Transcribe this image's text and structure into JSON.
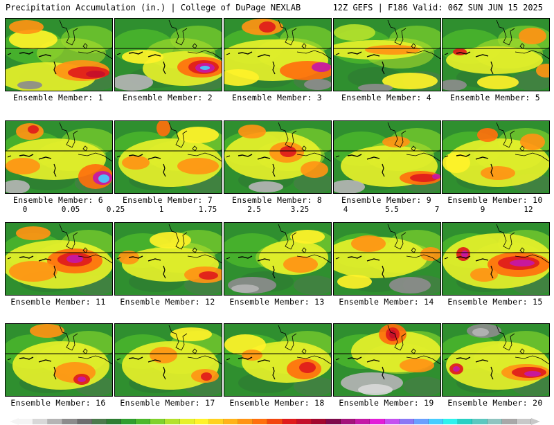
{
  "header": {
    "left": "Precipitation Accumulation (in.) | College of DuPage NEXLAB",
    "right": "12Z GEFS | F186 Valid: 06Z SUN JUN 15 2025"
  },
  "colorbar": {
    "labels": [
      "0",
      "0.05",
      "0.25",
      "1",
      "1.75",
      "2.5",
      "3.25",
      "4",
      "5.5",
      "7",
      "9",
      "12"
    ],
    "colors": [
      "#f4f4f4",
      "#d8d8d8",
      "#b4b4b4",
      "#8c8c8c",
      "#6e6e6e",
      "#4c7a4c",
      "#2e7d32",
      "#2f9e2f",
      "#4cb82c",
      "#7fd12c",
      "#b4e12c",
      "#e6f02a",
      "#fff229",
      "#ffd21f",
      "#ffb319",
      "#ff9413",
      "#ff700d",
      "#f2460e",
      "#e01b1b",
      "#c40f2a",
      "#a3072e",
      "#7d0a4b",
      "#a3127a",
      "#c418a6",
      "#e21ed8",
      "#c450f0",
      "#8a78f5",
      "#6aa0ff",
      "#46cdff",
      "#2ef2ee",
      "#28d0c4",
      "#5cc8c0",
      "#8fc4c0",
      "#a8a8a8",
      "#c8c8c8"
    ]
  },
  "panels": [
    {
      "label": "Ensemble Member: 1",
      "blobs": [
        [
          "#e6f02a",
          60,
          85,
          70,
          22
        ],
        [
          "#ff9413",
          110,
          75,
          40,
          15
        ],
        [
          "#e01b1b",
          120,
          78,
          30,
          9
        ],
        [
          "#c40f2a",
          130,
          80,
          14,
          5
        ],
        [
          "#fff229",
          40,
          30,
          35,
          14
        ],
        [
          "#ff9413",
          30,
          12,
          25,
          10
        ],
        [
          "#8c8c8c",
          35,
          96,
          18,
          6
        ]
      ]
    },
    {
      "label": "Ensemble Member: 2",
      "blobs": [
        [
          "#e6f02a",
          100,
          72,
          60,
          25
        ],
        [
          "#ff700d",
          125,
          70,
          35,
          15
        ],
        [
          "#e01b1b",
          128,
          70,
          22,
          10
        ],
        [
          "#c418a6",
          130,
          71,
          14,
          7
        ],
        [
          "#46cdff",
          130,
          71,
          7,
          3
        ],
        [
          "#b4b4b4",
          25,
          92,
          30,
          12
        ],
        [
          "#fff229",
          40,
          55,
          30,
          10
        ]
      ]
    },
    {
      "label": "Ensemble Member: 3",
      "blobs": [
        [
          "#e6f02a",
          70,
          60,
          80,
          30
        ],
        [
          "#ff9413",
          55,
          12,
          30,
          12
        ],
        [
          "#e01b1b",
          62,
          12,
          12,
          8
        ],
        [
          "#ff700d",
          120,
          75,
          40,
          14
        ],
        [
          "#c418a6",
          140,
          70,
          14,
          7
        ],
        [
          "#fff229",
          20,
          85,
          30,
          12
        ],
        [
          "#8c8c8c",
          135,
          95,
          20,
          8
        ]
      ]
    },
    {
      "label": "Ensemble Member: 4",
      "blobs": [
        [
          "#e6f02a",
          60,
          45,
          70,
          14
        ],
        [
          "#ff9413",
          85,
          45,
          40,
          7
        ],
        [
          "#fff229",
          110,
          90,
          40,
          12
        ],
        [
          "#8c8c8c",
          60,
          100,
          25,
          6
        ],
        [
          "#b4e12c",
          30,
          20,
          30,
          12
        ]
      ]
    },
    {
      "label": "Ensemble Member: 5",
      "blobs": [
        [
          "#e6f02a",
          75,
          60,
          70,
          20
        ],
        [
          "#ff9413",
          130,
          25,
          20,
          12
        ],
        [
          "#e01b1b",
          25,
          48,
          10,
          5
        ],
        [
          "#8c8c8c",
          15,
          96,
          20,
          8
        ],
        [
          "#ff9413",
          150,
          75,
          15,
          10
        ],
        [
          "#fff229",
          80,
          92,
          30,
          10
        ]
      ]
    },
    {
      "label": "Ensemble Member: 6",
      "blobs": [
        [
          "#e6f02a",
          70,
          55,
          75,
          30
        ],
        [
          "#ff9413",
          35,
          15,
          20,
          12
        ],
        [
          "#e01b1b",
          40,
          12,
          8,
          6
        ],
        [
          "#ff700d",
          130,
          80,
          25,
          18
        ],
        [
          "#c418a6",
          140,
          82,
          14,
          10
        ],
        [
          "#46cdff",
          142,
          83,
          8,
          6
        ],
        [
          "#b4b4b4",
          15,
          95,
          20,
          10
        ],
        [
          "#ff9413",
          25,
          65,
          25,
          12
        ]
      ]
    },
    {
      "label": "Ensemble Member: 7",
      "blobs": [
        [
          "#e6f02a",
          80,
          60,
          75,
          35
        ],
        [
          "#ff700d",
          70,
          10,
          10,
          12
        ],
        [
          "#ff9413",
          120,
          65,
          30,
          12
        ],
        [
          "#ff9413",
          30,
          60,
          20,
          10
        ],
        [
          "#fff229",
          120,
          20,
          30,
          12
        ]
      ]
    },
    {
      "label": "Ensemble Member: 8",
      "blobs": [
        [
          "#e6f02a",
          70,
          50,
          70,
          35
        ],
        [
          "#ff9413",
          90,
          45,
          25,
          15
        ],
        [
          "#e01b1b",
          92,
          44,
          12,
          8
        ],
        [
          "#ff9413",
          40,
          15,
          20,
          10
        ],
        [
          "#b4b4b4",
          60,
          95,
          25,
          8
        ],
        [
          "#ff9413",
          130,
          70,
          20,
          12
        ]
      ]
    },
    {
      "label": "Ensemble Member: 9",
      "blobs": [
        [
          "#e6f02a",
          80,
          65,
          70,
          30
        ],
        [
          "#ff700d",
          125,
          82,
          30,
          10
        ],
        [
          "#e01b1b",
          130,
          82,
          20,
          6
        ],
        [
          "#c418a6",
          148,
          80,
          6,
          4
        ],
        [
          "#b4b4b4",
          20,
          95,
          25,
          10
        ],
        [
          "#ff9413",
          90,
          30,
          20,
          8
        ]
      ]
    },
    {
      "label": "Ensemble Member: 10",
      "blobs": [
        [
          "#e6f02a",
          80,
          60,
          75,
          35
        ],
        [
          "#ff700d",
          65,
          20,
          15,
          10
        ],
        [
          "#ff9413",
          130,
          30,
          18,
          12
        ],
        [
          "#ff9413",
          80,
          75,
          25,
          10
        ],
        [
          "#fff229",
          20,
          60,
          20,
          15
        ]
      ]
    },
    {
      "label": "Ensemble Member: 11",
      "blobs": [
        [
          "#e6f02a",
          75,
          60,
          80,
          35
        ],
        [
          "#ff700d",
          100,
          55,
          40,
          18
        ],
        [
          "#e01b1b",
          100,
          53,
          25,
          10
        ],
        [
          "#c418a6",
          100,
          52,
          12,
          6
        ],
        [
          "#ff9413",
          40,
          70,
          35,
          15
        ],
        [
          "#ff9413",
          40,
          15,
          25,
          10
        ]
      ]
    },
    {
      "label": "Ensemble Member: 12",
      "blobs": [
        [
          "#e6f02a",
          80,
          60,
          70,
          25
        ],
        [
          "#ff9413",
          130,
          75,
          30,
          12
        ],
        [
          "#e01b1b",
          135,
          76,
          14,
          6
        ],
        [
          "#ff9413",
          20,
          50,
          15,
          10
        ],
        [
          "#fff229",
          80,
          25,
          30,
          12
        ]
      ]
    },
    {
      "label": "Ensemble Member: 13",
      "blobs": [
        [
          "#e6f02a",
          100,
          50,
          50,
          25
        ],
        [
          "#ff9413",
          110,
          60,
          25,
          12
        ],
        [
          "#8c8c8c",
          40,
          90,
          35,
          12
        ],
        [
          "#b4b4b4",
          30,
          95,
          20,
          6
        ],
        [
          "#fff229",
          120,
          20,
          25,
          10
        ]
      ]
    },
    {
      "label": "Ensemble Member: 14",
      "blobs": [
        [
          "#e6f02a",
          60,
          50,
          75,
          30
        ],
        [
          "#ff9413",
          50,
          30,
          25,
          12
        ],
        [
          "#ff9413",
          140,
          45,
          15,
          10
        ],
        [
          "#8c8c8c",
          110,
          90,
          30,
          12
        ],
        [
          "#fff229",
          30,
          85,
          25,
          10
        ]
      ]
    },
    {
      "label": "Ensemble Member: 15",
      "blobs": [
        [
          "#e6f02a",
          80,
          55,
          80,
          40
        ],
        [
          "#ff700d",
          110,
          60,
          45,
          18
        ],
        [
          "#e01b1b",
          110,
          58,
          30,
          10
        ],
        [
          "#c418a6",
          115,
          58,
          18,
          5
        ],
        [
          "#e01b1b",
          30,
          45,
          10,
          10
        ],
        [
          "#c418a6",
          32,
          45,
          5,
          5
        ],
        [
          "#ff9413",
          60,
          75,
          20,
          10
        ]
      ]
    },
    {
      "label": "Ensemble Member: 16",
      "blobs": [
        [
          "#e6f02a",
          80,
          60,
          70,
          35
        ],
        [
          "#ff9413",
          100,
          70,
          30,
          15
        ],
        [
          "#e01b1b",
          110,
          80,
          12,
          8
        ],
        [
          "#c418a6",
          110,
          80,
          6,
          4
        ],
        [
          "#ff9413",
          60,
          10,
          25,
          10
        ]
      ]
    },
    {
      "label": "Ensemble Member: 17",
      "blobs": [
        [
          "#e6f02a",
          80,
          60,
          70,
          35
        ],
        [
          "#ff9413",
          70,
          45,
          20,
          12
        ],
        [
          "#ff9413",
          130,
          75,
          20,
          10
        ],
        [
          "#e01b1b",
          132,
          76,
          8,
          6
        ],
        [
          "#fff229",
          110,
          15,
          30,
          10
        ]
      ]
    },
    {
      "label": "Ensemble Member: 18",
      "blobs": [
        [
          "#e6f02a",
          90,
          55,
          65,
          30
        ],
        [
          "#ff700d",
          115,
          65,
          25,
          15
        ],
        [
          "#e01b1b",
          120,
          63,
          12,
          8
        ],
        [
          "#fff229",
          30,
          30,
          30,
          15
        ],
        [
          "#ff9413",
          40,
          45,
          15,
          8
        ]
      ]
    },
    {
      "label": "Ensemble Member: 19",
      "blobs": [
        [
          "#e6f02a",
          90,
          40,
          65,
          30
        ],
        [
          "#ff700d",
          85,
          15,
          20,
          15
        ],
        [
          "#e01b1b",
          85,
          15,
          10,
          10
        ],
        [
          "#c40f2a",
          85,
          15,
          5,
          6
        ],
        [
          "#b4b4b4",
          55,
          85,
          45,
          15
        ],
        [
          "#d8d8d8",
          60,
          95,
          25,
          8
        ],
        [
          "#ff9413",
          120,
          60,
          25,
          10
        ]
      ]
    },
    {
      "label": "Ensemble Member: 20",
      "blobs": [
        [
          "#e6f02a",
          80,
          60,
          75,
          35
        ],
        [
          "#ff9413",
          120,
          70,
          35,
          12
        ],
        [
          "#e01b1b",
          125,
          70,
          25,
          8
        ],
        [
          "#c418a6",
          130,
          72,
          12,
          4
        ],
        [
          "#8c8c8c",
          60,
          10,
          25,
          10
        ],
        [
          "#b4b4b4",
          55,
          12,
          12,
          6
        ],
        [
          "#e01b1b",
          20,
          65,
          10,
          8
        ],
        [
          "#c418a6",
          20,
          65,
          5,
          4
        ]
      ]
    }
  ]
}
